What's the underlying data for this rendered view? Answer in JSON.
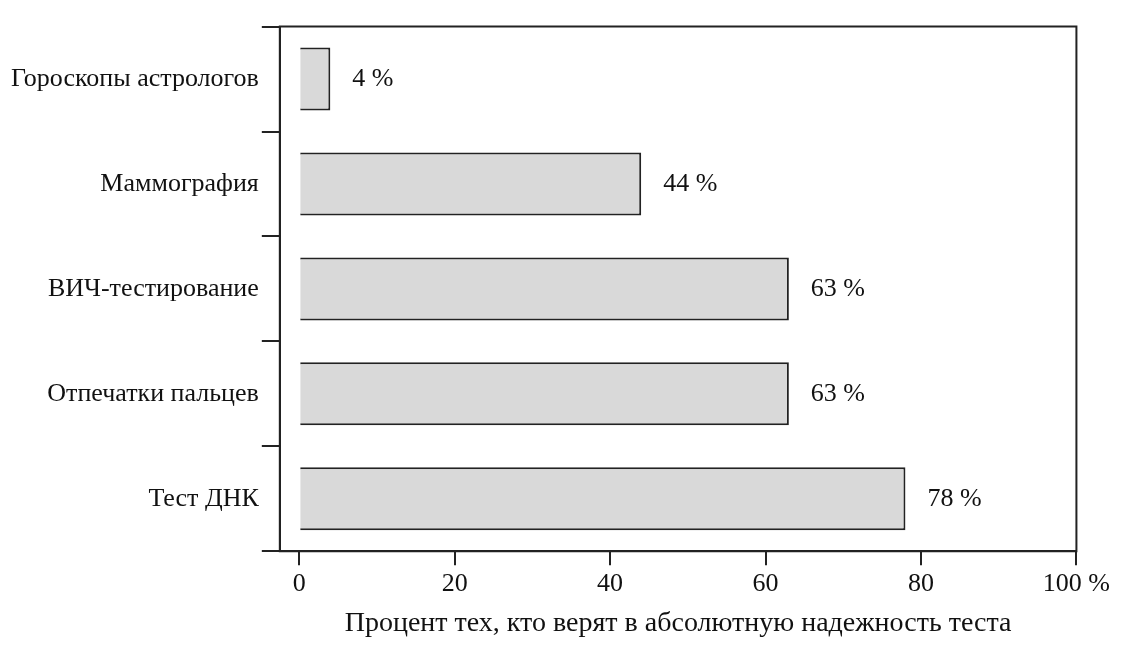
{
  "chart_data": {
    "type": "bar",
    "orientation": "horizontal",
    "xlabel": "Процент тех, кто верят в абсолютную надежность теста",
    "categories": [
      "Гороскопы астрологов",
      "Маммография",
      "ВИЧ-тестирование",
      "Отпечатки пальцев",
      "Тест ДНК"
    ],
    "values": [
      4,
      44,
      63,
      63,
      78
    ],
    "color": "#d9d9d9",
    "value_labels": [
      "4 %",
      "44 %",
      "63 %",
      "63 %",
      "78 %"
    ],
    "xlim": [
      -2.5,
      100
    ],
    "xticks": [
      0,
      20,
      40,
      60,
      80,
      {
        "value": 100,
        "label": "100 %"
      }
    ],
    "legend": false
  }
}
